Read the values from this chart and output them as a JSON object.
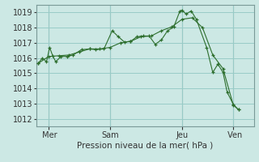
{
  "xlabel": "Pression niveau de la mer( hPa )",
  "bg_color": "#cce8e4",
  "grid_color": "#99ccc8",
  "line_color": "#2d6e2d",
  "marker": "+",
  "ylim": [
    1011.5,
    1019.5
  ],
  "yticks": [
    1012,
    1013,
    1014,
    1015,
    1016,
    1017,
    1018,
    1019
  ],
  "xtick_labels": [
    " Mer",
    "Sam",
    "Jeu",
    " Ven"
  ],
  "xtick_positions": [
    0.5,
    3.5,
    7.0,
    9.5
  ],
  "xlim": [
    -0.1,
    10.5
  ],
  "vlines": [
    0.5,
    3.5,
    7.0,
    9.5
  ],
  "series1": [
    [
      0.0,
      1015.65
    ],
    [
      0.2,
      1016.0
    ],
    [
      0.4,
      1015.75
    ],
    [
      0.55,
      1016.7
    ],
    [
      0.7,
      1016.15
    ],
    [
      0.85,
      1015.75
    ],
    [
      1.1,
      1016.1
    ],
    [
      1.4,
      1016.1
    ],
    [
      1.7,
      1016.2
    ],
    [
      2.1,
      1016.55
    ],
    [
      2.5,
      1016.6
    ],
    [
      2.8,
      1016.55
    ],
    [
      3.2,
      1016.6
    ],
    [
      3.6,
      1017.8
    ],
    [
      3.9,
      1017.4
    ],
    [
      4.2,
      1017.05
    ],
    [
      4.5,
      1017.1
    ],
    [
      4.8,
      1017.4
    ],
    [
      5.1,
      1017.45
    ],
    [
      5.4,
      1017.45
    ],
    [
      5.7,
      1016.9
    ],
    [
      6.0,
      1017.2
    ],
    [
      6.3,
      1017.8
    ],
    [
      6.6,
      1018.05
    ],
    [
      6.9,
      1019.1
    ],
    [
      7.0,
      1019.15
    ],
    [
      7.2,
      1018.9
    ],
    [
      7.45,
      1019.1
    ],
    [
      7.7,
      1018.55
    ],
    [
      8.2,
      1016.7
    ],
    [
      8.5,
      1015.05
    ],
    [
      8.75,
      1015.6
    ],
    [
      9.0,
      1015.05
    ],
    [
      9.2,
      1013.75
    ],
    [
      9.5,
      1012.95
    ],
    [
      9.75,
      1012.6
    ]
  ],
  "series2": [
    [
      0.0,
      1015.65
    ],
    [
      0.5,
      1016.1
    ],
    [
      1.0,
      1016.15
    ],
    [
      1.5,
      1016.2
    ],
    [
      2.0,
      1016.4
    ],
    [
      2.5,
      1016.6
    ],
    [
      3.0,
      1016.6
    ],
    [
      3.5,
      1016.7
    ],
    [
      4.0,
      1017.0
    ],
    [
      4.5,
      1017.1
    ],
    [
      5.0,
      1017.4
    ],
    [
      5.5,
      1017.45
    ],
    [
      6.0,
      1017.8
    ],
    [
      6.5,
      1018.05
    ],
    [
      7.0,
      1018.55
    ],
    [
      7.5,
      1018.65
    ],
    [
      8.0,
      1018.0
    ],
    [
      8.5,
      1016.2
    ],
    [
      9.0,
      1015.3
    ],
    [
      9.5,
      1012.9
    ],
    [
      9.75,
      1012.6
    ]
  ]
}
